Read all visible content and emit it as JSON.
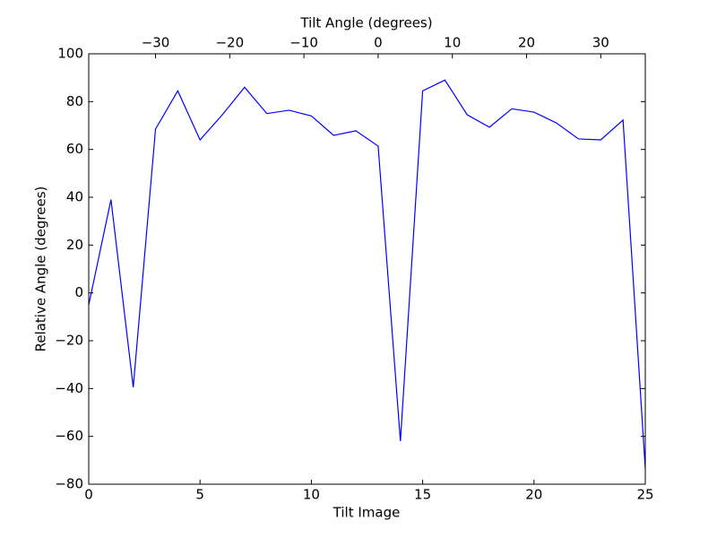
{
  "chart_data": {
    "type": "line",
    "xlabel": "Tilt Image",
    "ylabel": "Relative Angle (degrees)",
    "x2label": "Tilt Angle (degrees)",
    "x": [
      0,
      1,
      2,
      3,
      4,
      5,
      6,
      7,
      8,
      9,
      10,
      11,
      12,
      13,
      14,
      15,
      16,
      17,
      18,
      19,
      20,
      21,
      22,
      23,
      24,
      25
    ],
    "series": [
      {
        "name": "Relative Angle",
        "color": "#0000ff",
        "values": [
          -5,
          39,
          -39.5,
          68.5,
          84.5,
          64,
          74.5,
          86,
          75,
          76.4,
          74,
          65.9,
          67.8,
          61.4,
          -62,
          84.5,
          89,
          74.5,
          69.3,
          77,
          75.6,
          71.1,
          64.4,
          64,
          72.3,
          -73.6
        ]
      }
    ],
    "xlim": [
      0,
      25
    ],
    "xticks": [
      0,
      5,
      10,
      15,
      20,
      25
    ],
    "x2lim": [
      -39,
      36
    ],
    "x2ticks": [
      {
        "value": -30,
        "label": "−30"
      },
      {
        "value": -20,
        "label": "−20"
      },
      {
        "value": -10,
        "label": "−10"
      },
      0,
      10,
      20,
      30
    ],
    "ylim": [
      -80,
      100
    ],
    "yticks": [
      {
        "value": -80,
        "label": "−80"
      },
      {
        "value": -60,
        "label": "−60"
      },
      {
        "value": -40,
        "label": "−40"
      },
      {
        "value": -20,
        "label": "−20"
      },
      0,
      20,
      40,
      60,
      80,
      100
    ],
    "grid": false
  }
}
